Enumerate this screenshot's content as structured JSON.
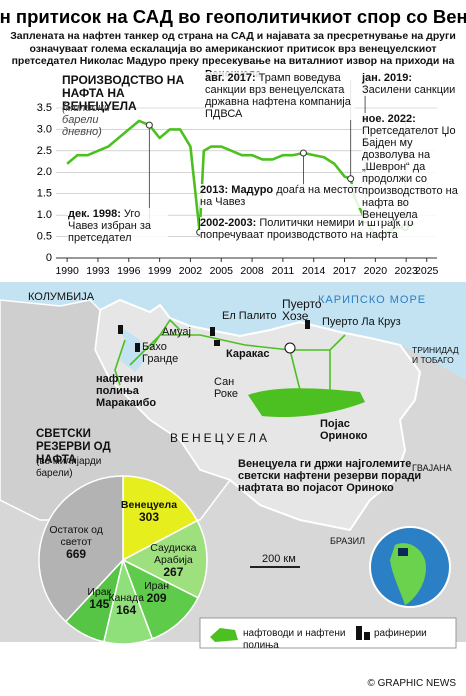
{
  "header": {
    "title": "Засилен притисок на САД во геополитичкиот спор со Венецуела",
    "subtitle": "Заплената на нафтен танкер од страна на САД и најавата за пресретнување на други означуваат голема ескалација во американскиот притисок врз венецуелскиот претседател Николас Мадуро преку пресекување на виталниот извор на приходи на Венецуела"
  },
  "chart_data": [
    {
      "type": "line",
      "title": "ПРОИЗВОДСТВО НА НАФТА НА ВЕНЕЦУЕЛА",
      "subtitle": "(милиони барели дневно)",
      "color": "#4cc021",
      "x": [
        1990,
        1991,
        1992,
        1993,
        1994,
        1995,
        1996,
        1997,
        1998,
        1999,
        2000,
        2001,
        2002,
        2002.9,
        2003.3,
        2004,
        2005,
        2006,
        2007,
        2008,
        2009,
        2010,
        2011,
        2012,
        2013,
        2014,
        2015,
        2016,
        2017,
        2017.6,
        2018,
        2019,
        2020,
        2021,
        2022,
        2022.9,
        2023.8
      ],
      "values": [
        2.2,
        2.4,
        2.4,
        2.5,
        2.6,
        2.8,
        3.0,
        3.2,
        3.1,
        2.8,
        3.0,
        3.0,
        2.6,
        0.6,
        2.5,
        2.6,
        2.6,
        2.5,
        2.4,
        2.4,
        2.3,
        2.3,
        2.4,
        2.4,
        2.45,
        2.4,
        2.35,
        2.2,
        1.9,
        1.85,
        1.4,
        0.9,
        0.5,
        0.6,
        0.7,
        0.72,
        0.8
      ],
      "xlim": [
        1989.5,
        2026
      ],
      "xticks": [
        1990,
        1993,
        1996,
        1999,
        2002,
        2005,
        2008,
        2011,
        2014,
        2017,
        2020,
        2023,
        2025
      ],
      "ylim": [
        0,
        3.5
      ],
      "yticks": [
        0,
        0.5,
        {
          "value": 1,
          "label": "1.0"
        },
        1.5,
        {
          "value": 2,
          "label": "2.0"
        },
        2.5,
        {
          "value": 3,
          "label": "3.0"
        },
        3.5
      ],
      "grid": true,
      "annotations": [
        {
          "x": 1998,
          "label": "дек. 1998:",
          "text": "Уго Чавез избран за претседател"
        },
        {
          "x": 2002.9,
          "label": "2002-2003:",
          "text": "Политички немири и штрајк го попречуваат производството на нафта"
        },
        {
          "x": 2013,
          "label": "2013: Мадуро",
          "text": "доаѓа на местото на Чавез"
        },
        {
          "x": 2017.6,
          "label": "авг. 2017:",
          "text": "Трамп воведува санкции врз венецуелската државна нафтена компанија ПДВСА"
        },
        {
          "x": 2019,
          "label": "јан. 2019:",
          "text": "Засилени санкции"
        },
        {
          "x": 2022.9,
          "label": "ное. 2022:",
          "text": "Претседателот Џо Бајден му дозволува на „Шеврон“ да продолжи со производството на нафта во Венецуела"
        }
      ]
    },
    {
      "type": "pie",
      "title": "СВЕТСКИ РЕЗЕРВИ ОД НАФТА",
      "subtitle": "(во милијарди барели)",
      "categories": [
        "Венецуела",
        "Саудиска Арабија",
        "Иран",
        "Канада",
        "Ирак",
        "Остаток од светот"
      ],
      "values": [
        303,
        267,
        209,
        164,
        145,
        669
      ],
      "colors": [
        "#e6ee1e",
        "#9fe07e",
        "#5fcb4a",
        "#8fe07a",
        "#56c444",
        "#b3b3b3"
      ]
    }
  ],
  "map": {
    "labels": [
      "КОЛУМБИЈА",
      "КАРИПСКО МОРЕ",
      "Амуај",
      "Бахо Гранде",
      "Ел Палито",
      "Пуерто Хозе",
      "Пуерто Ла Круз",
      "Каракас",
      "Сан Роке",
      "нафтени полиња Маракаибо",
      "Појас Ориноко",
      "ВЕНЕЦУЕЛА",
      "ТРИНИДАД И ТОБАГО",
      "ГВАЈАНА",
      "БРАЗИЛ",
      "200 км",
      "Венецуела ги држи најголемите светски нафтени резерви поради нафтата во појасот Ориноко"
    ]
  },
  "legend": {
    "pipelines": "нафтоводи и нафтени полиња",
    "refineries": "рафинерии"
  },
  "credit": "© GRAPHIC NEWS"
}
